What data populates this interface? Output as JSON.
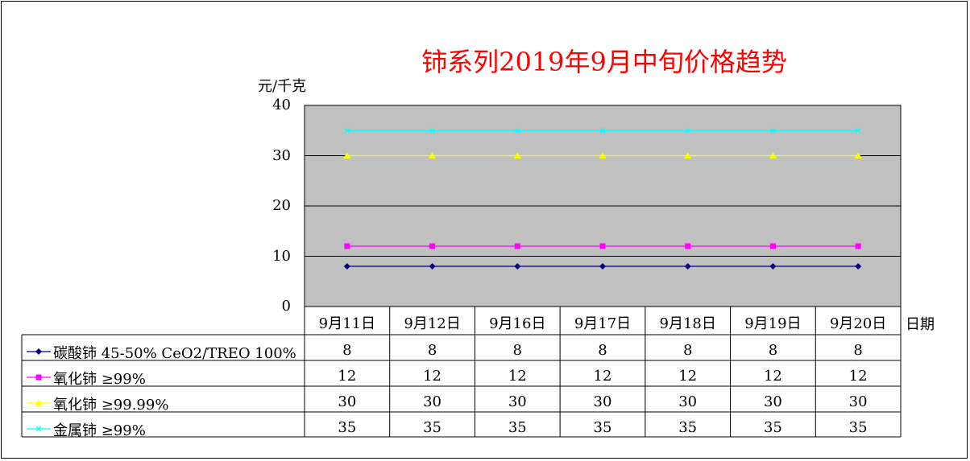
{
  "chart_data": {
    "type": "line",
    "title": "铈系列2019年9月中旬价格趋势",
    "ylabel": "元/千克",
    "xlabel": "日期",
    "ylim": [
      0,
      40
    ],
    "yticks": [
      "0",
      "10",
      "20",
      "30",
      "40"
    ],
    "grid": true,
    "categories": [
      "9月11日",
      "9月12日",
      "9月16日",
      "9月17日",
      "9月18日",
      "9月19日",
      "9月20日"
    ],
    "series": [
      {
        "name": "碳酸铈 45-50% CeO2/TREO 100%",
        "color": "#000080",
        "marker": "diamond",
        "values": [
          8,
          8,
          8,
          8,
          8,
          8,
          8
        ]
      },
      {
        "name": "氧化铈 ≥99%",
        "color": "#ff00ff",
        "marker": "square",
        "values": [
          12,
          12,
          12,
          12,
          12,
          12,
          12
        ]
      },
      {
        "name": "氧化铈 ≥99.99%",
        "color": "#ffff00",
        "marker": "triangle",
        "values": [
          30,
          30,
          30,
          30,
          30,
          30,
          30
        ]
      },
      {
        "name": "金属铈 ≥99%",
        "color": "#00ffff",
        "marker": "x",
        "values": [
          35,
          35,
          35,
          35,
          35,
          35,
          35
        ]
      }
    ]
  }
}
